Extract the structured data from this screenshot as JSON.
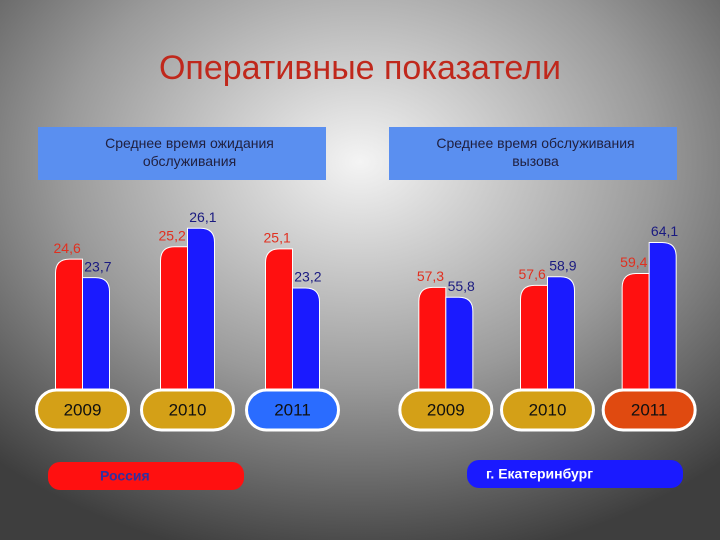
{
  "title": "Оперативные показатели",
  "chart_data": [
    {
      "type": "bar",
      "title": "Среднее время ожидания обслуживания",
      "categories": [
        "2009",
        "2010",
        "2011"
      ],
      "series": [
        {
          "name": "Россия",
          "color": "#ff1010",
          "values": [
            24.6,
            25.2,
            25.1
          ],
          "value_labels": [
            "24,6",
            "25,2",
            "25,1"
          ]
        },
        {
          "name": "г. Екатеринбург",
          "color": "#1a1aff",
          "values": [
            23.7,
            26.1,
            23.2
          ],
          "value_labels": [
            "23,7",
            "26,1",
            "23,2"
          ]
        }
      ],
      "ylim": [
        18,
        26.5
      ]
    },
    {
      "type": "bar",
      "title": "Среднее время обслуживания вызова",
      "categories": [
        "2009",
        "2010",
        "2011"
      ],
      "series": [
        {
          "name": "Россия",
          "color": "#ff1010",
          "values": [
            57.3,
            57.6,
            59.4
          ],
          "value_labels": [
            "57,3",
            "57,6",
            "59,4"
          ]
        },
        {
          "name": "г. Екатеринбург",
          "color": "#1a1aff",
          "values": [
            55.8,
            58.9,
            64.1
          ],
          "value_labels": [
            "55,8",
            "58,9",
            "64,1"
          ]
        }
      ],
      "ylim": [
        41,
        67.5
      ]
    }
  ]
}
